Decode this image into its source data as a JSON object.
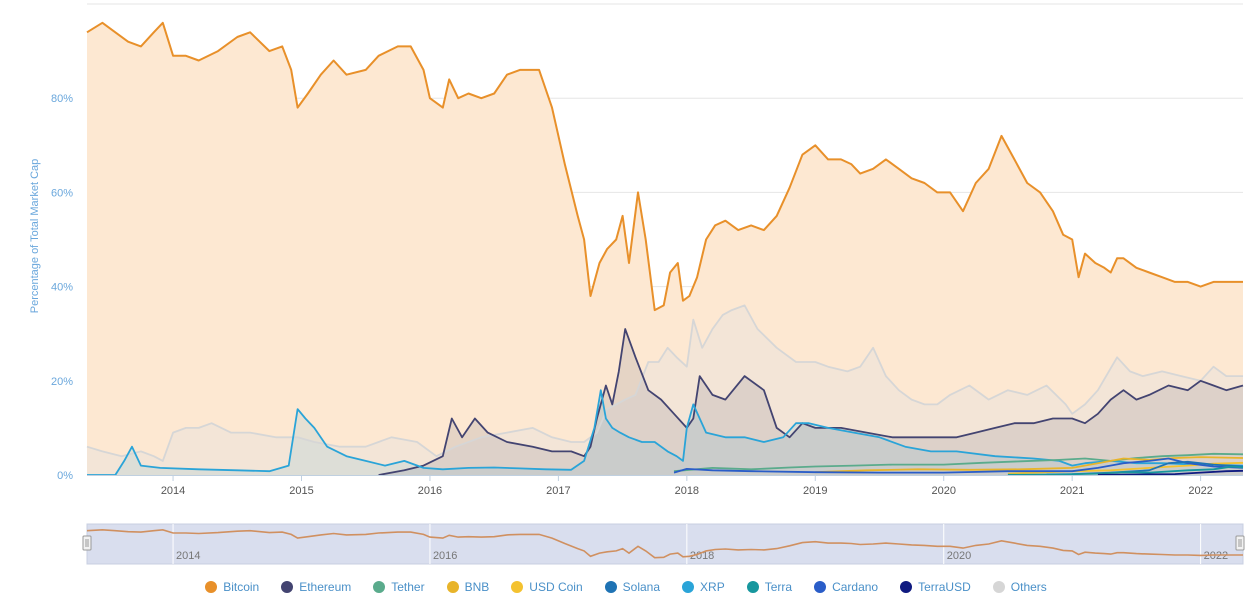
{
  "chart_data": {
    "type": "area",
    "ylabel": "Percentage of Total Market Cap",
    "ylim": [
      0,
      100
    ],
    "yticks": [
      "0%",
      "20%",
      "40%",
      "60%",
      "80%"
    ],
    "ytick_values": [
      0,
      20,
      40,
      60,
      80
    ],
    "xlim": [
      2013.33,
      2022.33
    ],
    "xticks": [
      "2014",
      "2015",
      "2016",
      "2017",
      "2018",
      "2019",
      "2020",
      "2021",
      "2022"
    ],
    "xtick_values": [
      2014,
      2015,
      2016,
      2017,
      2018,
      2019,
      2020,
      2021,
      2022
    ],
    "grid": true,
    "legend_position": "bottom",
    "navigator": {
      "xticks": [
        "2014",
        "2016",
        "2018",
        "2020",
        "2022"
      ],
      "xtick_values": [
        2014,
        2016,
        2018,
        2020,
        2022
      ],
      "series": "Bitcoin"
    },
    "series": [
      {
        "name": "Bitcoin",
        "color": "#e8902a",
        "fill": "#fde8d2",
        "x": [
          2013.33,
          2013.45,
          2013.55,
          2013.65,
          2013.75,
          2013.85,
          2013.92,
          2014.0,
          2014.1,
          2014.2,
          2014.35,
          2014.5,
          2014.6,
          2014.75,
          2014.85,
          2014.92,
          2014.97,
          2015.05,
          2015.15,
          2015.25,
          2015.35,
          2015.5,
          2015.6,
          2015.75,
          2015.85,
          2015.95,
          2016.0,
          2016.1,
          2016.15,
          2016.22,
          2016.3,
          2016.4,
          2016.5,
          2016.6,
          2016.7,
          2016.85,
          2016.95,
          2017.05,
          2017.15,
          2017.2,
          2017.25,
          2017.32,
          2017.38,
          2017.45,
          2017.5,
          2017.55,
          2017.62,
          2017.68,
          2017.75,
          2017.82,
          2017.87,
          2017.93,
          2017.97,
          2018.02,
          2018.08,
          2018.15,
          2018.22,
          2018.3,
          2018.4,
          2018.5,
          2018.6,
          2018.7,
          2018.8,
          2018.9,
          2019.0,
          2019.1,
          2019.2,
          2019.28,
          2019.35,
          2019.45,
          2019.55,
          2019.65,
          2019.75,
          2019.85,
          2019.95,
          2020.05,
          2020.15,
          2020.25,
          2020.35,
          2020.45,
          2020.55,
          2020.65,
          2020.75,
          2020.85,
          2020.93,
          2021.0,
          2021.05,
          2021.1,
          2021.18,
          2021.25,
          2021.3,
          2021.35,
          2021.4,
          2021.5,
          2021.6,
          2021.7,
          2021.8,
          2021.9,
          2022.0,
          2022.1,
          2022.2,
          2022.33
        ],
        "y": [
          94,
          96,
          94,
          92,
          91,
          94,
          96,
          89,
          89,
          88,
          90,
          93,
          94,
          90,
          91,
          86,
          78,
          81,
          85,
          88,
          85,
          86,
          89,
          91,
          91,
          86,
          80,
          78,
          84,
          80,
          81,
          80,
          81,
          85,
          86,
          86,
          78,
          66,
          55,
          50,
          38,
          45,
          48,
          50,
          55,
          45,
          60,
          50,
          35,
          36,
          43,
          45,
          37,
          38,
          42,
          50,
          53,
          54,
          52,
          53,
          52,
          55,
          61,
          68,
          70,
          67,
          67,
          66,
          64,
          65,
          67,
          65,
          63,
          62,
          60,
          60,
          56,
          62,
          65,
          72,
          67,
          62,
          60,
          56,
          51,
          50,
          42,
          47,
          45,
          44,
          43,
          46,
          46,
          44,
          43,
          42,
          41,
          41,
          40,
          41,
          41,
          41
        ]
      },
      {
        "name": "Ethereum",
        "color": "#434471",
        "fill": "rgba(120,120,140,0.18)",
        "x": [
          2015.6,
          2015.8,
          2015.95,
          2016.1,
          2016.17,
          2016.25,
          2016.35,
          2016.45,
          2016.6,
          2016.8,
          2016.95,
          2017.1,
          2017.2,
          2017.25,
          2017.3,
          2017.37,
          2017.42,
          2017.47,
          2017.52,
          2017.6,
          2017.7,
          2017.8,
          2017.9,
          2018.0,
          2018.05,
          2018.1,
          2018.2,
          2018.3,
          2018.45,
          2018.6,
          2018.7,
          2018.8,
          2018.9,
          2019.0,
          2019.2,
          2019.4,
          2019.6,
          2019.8,
          2019.95,
          2020.1,
          2020.25,
          2020.4,
          2020.55,
          2020.7,
          2020.85,
          2021.0,
          2021.1,
          2021.2,
          2021.3,
          2021.4,
          2021.5,
          2021.6,
          2021.75,
          2021.9,
          2022.0,
          2022.1,
          2022.2,
          2022.33
        ],
        "y": [
          0,
          1,
          2,
          4,
          12,
          8,
          12,
          9,
          7,
          6,
          5,
          5,
          4,
          6,
          12,
          19,
          15,
          22,
          31,
          25,
          18,
          16,
          13,
          10,
          12,
          21,
          17,
          16,
          21,
          18,
          10,
          8,
          11,
          10,
          10,
          9,
          8,
          8,
          8,
          8,
          9,
          10,
          11,
          11,
          12,
          12,
          11,
          13,
          16,
          18,
          16,
          17,
          19,
          18,
          20,
          19,
          18,
          19
        ]
      },
      {
        "name": "Tether",
        "color": "#5aab8c",
        "fill": "none",
        "x": [
          2017.9,
          2018.2,
          2018.5,
          2018.8,
          2019.0,
          2019.3,
          2019.6,
          2020.0,
          2020.3,
          2020.6,
          2020.9,
          2021.1,
          2021.3,
          2021.5,
          2021.7,
          2021.9,
          2022.1,
          2022.33
        ],
        "y": [
          0.8,
          1.5,
          1.2,
          1.6,
          1.8,
          2.0,
          2.2,
          2.2,
          2.6,
          2.9,
          3.2,
          3.5,
          3.0,
          3.6,
          4.0,
          4.2,
          4.5,
          4.4
        ]
      },
      {
        "name": "BNB",
        "color": "#e8b42a",
        "fill": "none",
        "x": [
          2019.0,
          2019.4,
          2019.8,
          2020.2,
          2020.6,
          2021.0,
          2021.2,
          2021.4,
          2021.6,
          2021.8,
          2022.0,
          2022.33
        ],
        "y": [
          0.6,
          1.0,
          1.2,
          1.1,
          1.2,
          1.5,
          2.5,
          3.5,
          3.2,
          3.6,
          3.8,
          3.6
        ]
      },
      {
        "name": "USD Coin",
        "color": "#f4c230",
        "fill": "none",
        "x": [
          2020.5,
          2020.8,
          2021.0,
          2021.3,
          2021.6,
          2021.9,
          2022.1,
          2022.33
        ],
        "y": [
          0.3,
          0.6,
          0.8,
          1.0,
          1.5,
          2.0,
          2.4,
          2.6
        ]
      },
      {
        "name": "Solana",
        "color": "#1f73b4",
        "fill": "none",
        "x": [
          2020.8,
          2021.0,
          2021.3,
          2021.6,
          2021.75,
          2021.9,
          2022.1,
          2022.33
        ],
        "y": [
          0.1,
          0.2,
          0.5,
          1.0,
          2.5,
          2.8,
          2.2,
          1.8
        ]
      },
      {
        "name": "XRP",
        "color": "#2aa4d8",
        "fill": "rgba(64,170,220,0.12)",
        "x": [
          2013.33,
          2013.55,
          2013.62,
          2013.68,
          2013.75,
          2013.9,
          2014.2,
          2014.5,
          2014.75,
          2014.9,
          2014.97,
          2015.03,
          2015.1,
          2015.2,
          2015.35,
          2015.5,
          2015.65,
          2015.8,
          2015.95,
          2016.1,
          2016.3,
          2016.5,
          2016.7,
          2016.9,
          2017.1,
          2017.2,
          2017.28,
          2017.33,
          2017.37,
          2017.42,
          2017.48,
          2017.55,
          2017.65,
          2017.75,
          2017.85,
          2017.92,
          2017.97,
          2018.0,
          2018.05,
          2018.15,
          2018.3,
          2018.45,
          2018.6,
          2018.75,
          2018.85,
          2018.95,
          2019.1,
          2019.3,
          2019.5,
          2019.7,
          2019.9,
          2020.1,
          2020.4,
          2020.7,
          2020.9,
          2021.0,
          2021.1,
          2021.3,
          2021.5,
          2021.7,
          2021.9,
          2022.1,
          2022.33
        ],
        "y": [
          0,
          0,
          3,
          6,
          2,
          1.5,
          1.2,
          1,
          0.8,
          2,
          14,
          12,
          10,
          6,
          4,
          3,
          2,
          3,
          1.5,
          1.2,
          1.5,
          1.6,
          1.4,
          1.2,
          1.1,
          3,
          10,
          18,
          12,
          10,
          9,
          8,
          7,
          7,
          5,
          4,
          3,
          10,
          15,
          9,
          8,
          8,
          7,
          8,
          11,
          11,
          10,
          9,
          8,
          6,
          5,
          5,
          4,
          3.5,
          3,
          2,
          2.5,
          3,
          2.5,
          2.5,
          2.3,
          2.2,
          2.0
        ]
      },
      {
        "name": "Terra",
        "color": "#17979e",
        "fill": "none",
        "x": [
          2020.5,
          2020.9,
          2021.2,
          2021.4,
          2021.6,
          2021.9,
          2022.1,
          2022.25,
          2022.33
        ],
        "y": [
          0.05,
          0.1,
          0.3,
          0.6,
          0.5,
          1.0,
          1.2,
          1.8,
          1.6
        ]
      },
      {
        "name": "Cardano",
        "color": "#2a5dc8",
        "fill": "none",
        "x": [
          2017.9,
          2018.0,
          2018.2,
          2018.5,
          2019.0,
          2019.5,
          2020.0,
          2020.5,
          2021.0,
          2021.2,
          2021.4,
          2021.6,
          2021.75,
          2021.9,
          2022.1,
          2022.33
        ],
        "y": [
          0.5,
          1.3,
          1.0,
          0.8,
          0.6,
          0.5,
          0.5,
          0.8,
          0.8,
          1.5,
          2.5,
          3.0,
          3.5,
          2.5,
          1.8,
          1.5
        ]
      },
      {
        "name": "TerraUSD",
        "color": "#0f1a80",
        "fill": "none",
        "x": [
          2021.2,
          2021.5,
          2021.8,
          2022.0,
          2022.2,
          2022.33
        ],
        "y": [
          0.05,
          0.1,
          0.2,
          0.5,
          0.8,
          0.9
        ]
      },
      {
        "name": "Others",
        "color": "#d6d6d6",
        "fill": "rgba(230,226,222,0.45)",
        "x": [
          2013.33,
          2013.45,
          2013.6,
          2013.75,
          2013.85,
          2013.92,
          2014.0,
          2014.1,
          2014.2,
          2014.3,
          2014.45,
          2014.6,
          2014.8,
          2014.97,
          2015.1,
          2015.3,
          2015.5,
          2015.7,
          2015.9,
          2016.05,
          2016.2,
          2016.4,
          2016.6,
          2016.8,
          2016.95,
          2017.1,
          2017.2,
          2017.3,
          2017.38,
          2017.45,
          2017.52,
          2017.6,
          2017.7,
          2017.78,
          2017.85,
          2017.92,
          2018.0,
          2018.05,
          2018.12,
          2018.2,
          2018.28,
          2018.35,
          2018.45,
          2018.55,
          2018.7,
          2018.85,
          2019.0,
          2019.1,
          2019.25,
          2019.35,
          2019.45,
          2019.55,
          2019.65,
          2019.75,
          2019.85,
          2019.95,
          2020.05,
          2020.2,
          2020.35,
          2020.5,
          2020.65,
          2020.8,
          2020.95,
          2021.0,
          2021.1,
          2021.2,
          2021.35,
          2021.45,
          2021.55,
          2021.7,
          2021.85,
          2022.0,
          2022.1,
          2022.2,
          2022.33
        ],
        "y": [
          6,
          5,
          4,
          5,
          4,
          3,
          9,
          10,
          10,
          11,
          9,
          9,
          8,
          8,
          7,
          6,
          6,
          8,
          7,
          4,
          6,
          8,
          9,
          10,
          8,
          7,
          7,
          9,
          14,
          15,
          16,
          17,
          24,
          24,
          27,
          25,
          23,
          33,
          27,
          31,
          34,
          35,
          36,
          31,
          27,
          24,
          24,
          23,
          22,
          23,
          27,
          21,
          18,
          16,
          15,
          15,
          17,
          19,
          16,
          18,
          17,
          19,
          15,
          13,
          15,
          18,
          25,
          22,
          21,
          22,
          21,
          20,
          23,
          21,
          21
        ]
      }
    ]
  }
}
